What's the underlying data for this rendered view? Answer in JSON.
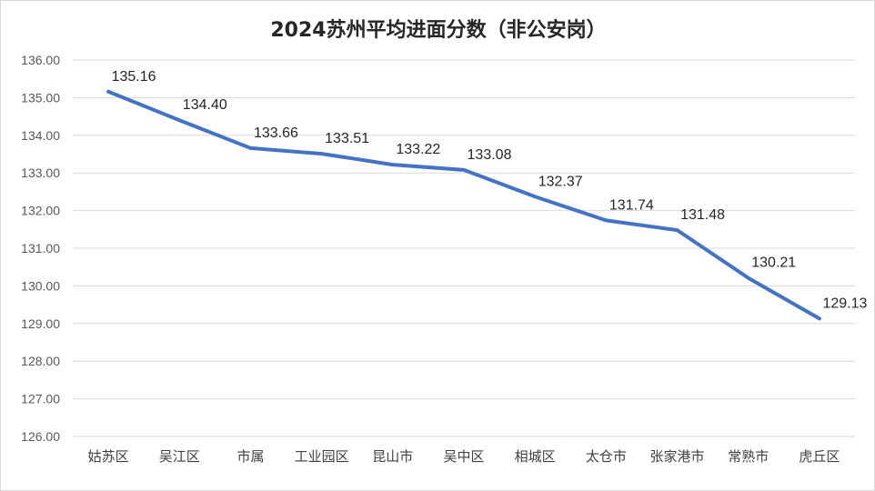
{
  "chart_data": {
    "type": "line",
    "title": "2024苏州平均进面分数（非公安岗）",
    "categories": [
      "姑苏区",
      "吴江区",
      "市属",
      "工业园区",
      "昆山市",
      "吴中区",
      "相城区",
      "太仓市",
      "张家港市",
      "常熟市",
      "虎丘区"
    ],
    "series": [
      {
        "values": [
          135.16,
          134.4,
          133.66,
          133.51,
          133.22,
          133.08,
          132.37,
          131.74,
          131.48,
          130.21,
          129.13
        ]
      }
    ],
    "data_labels": [
      "135.16",
      "134.40",
      "133.66",
      "133.51",
      "133.22",
      "133.08",
      "132.37",
      "131.74",
      "131.48",
      "130.21",
      "129.13"
    ],
    "y_ticks": [
      "126.00",
      "127.00",
      "128.00",
      "129.00",
      "130.00",
      "131.00",
      "132.00",
      "133.00",
      "134.00",
      "135.00",
      "136.00"
    ],
    "ylim": [
      126,
      136
    ],
    "grid": true,
    "legend": "none",
    "line_color": "#4472c4"
  }
}
